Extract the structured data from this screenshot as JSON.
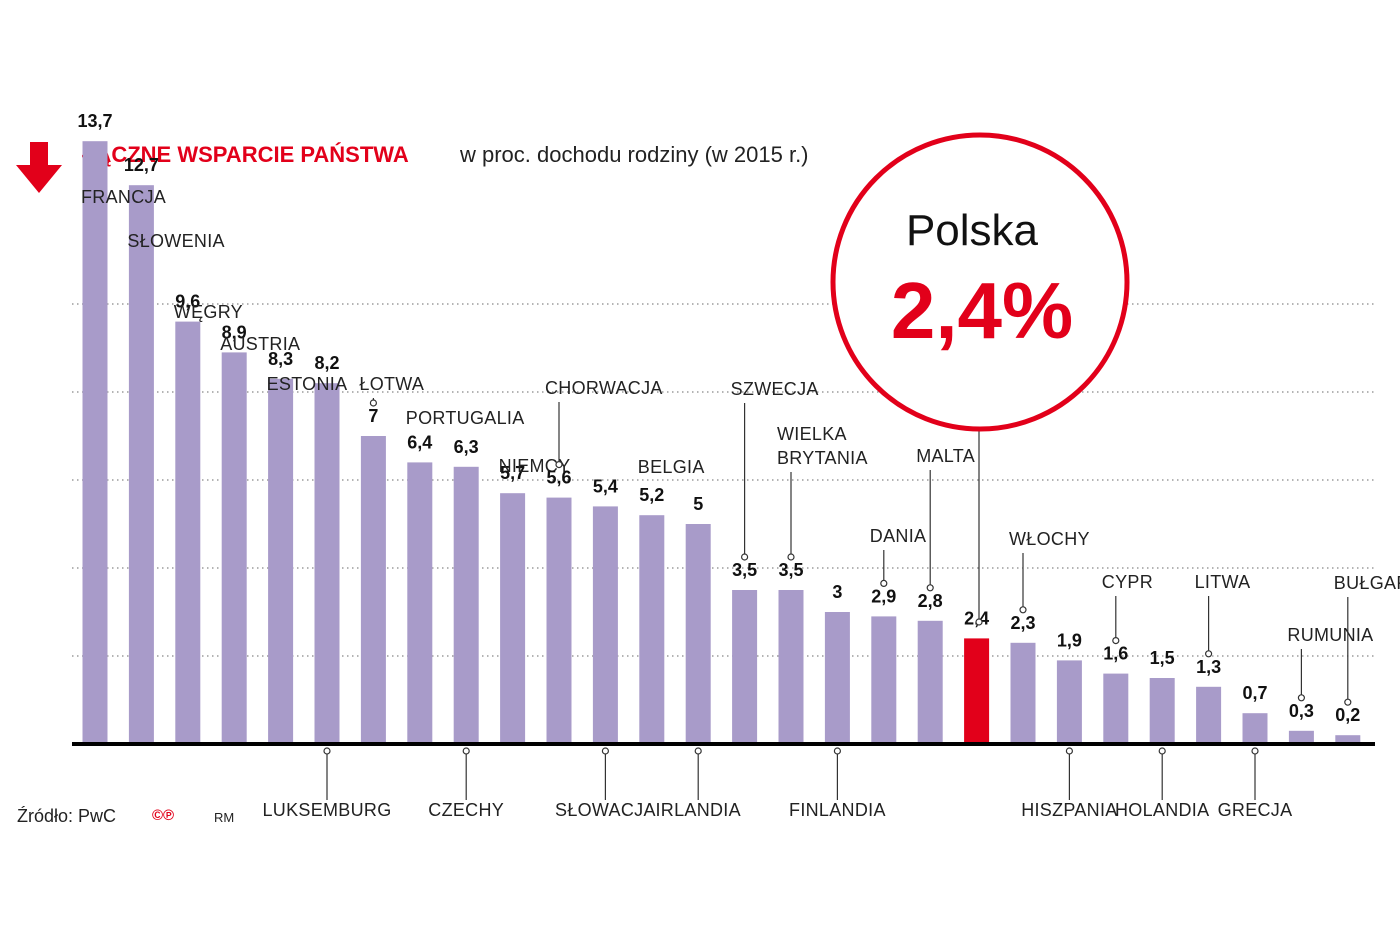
{
  "header": {
    "title": "ŁĄCZNE WSPARCIE PAŃSTWA",
    "subtitle": "w proc. dochodu rodziny (w 2015 r.)"
  },
  "highlight": {
    "country": "Polska",
    "value_label": "2,4%"
  },
  "footer": {
    "source": "Źródło: PwC",
    "copyright": "©℗",
    "author": "RM"
  },
  "colors": {
    "bar": "#a89bc9",
    "highlight": "#e2001a",
    "accent": "#e2001a",
    "grid": "#888888"
  },
  "chart_data": {
    "type": "bar",
    "title": "ŁĄCZNE WSPARCIE PAŃSTWA",
    "subtitle": "w proc. dochodu rodziny (w 2015 r.)",
    "xlabel": "",
    "ylabel": "",
    "ylim": [
      0,
      15
    ],
    "grid": true,
    "highlight_category": "POLSKA",
    "categories": [
      "FRANCJA",
      "SŁOWENIA",
      "WĘGRY",
      "AUSTRIA",
      "ESTONIA",
      "LUKSEMBURG",
      "ŁOTWA",
      "PORTUGALIA",
      "CZECHY",
      "NIEMCY",
      "CHORWACJA",
      "SŁOWACJA",
      "BELGIA",
      "IRLANDIA",
      "SZWECJA",
      "WIELKA BRYTANIA",
      "FINLANDIA",
      "DANIA",
      "MALTA",
      "POLSKA",
      "WŁOCHY",
      "HISZPANIA",
      "CYPR",
      "HOLANDIA",
      "LITWA",
      "GRECJA",
      "RUMUNIA",
      "BUŁGARIA"
    ],
    "values": [
      13.7,
      12.7,
      9.6,
      8.9,
      8.3,
      8.2,
      7,
      6.4,
      6.3,
      5.7,
      5.6,
      5.4,
      5.2,
      5,
      3.5,
      3.5,
      3,
      2.9,
      2.8,
      2.4,
      2.3,
      1.9,
      1.6,
      1.5,
      1.3,
      0.7,
      0.3,
      0.2
    ],
    "value_labels": [
      "13,7",
      "12,7",
      "9,6",
      "8,9",
      "8,3",
      "8,2",
      "7",
      "6,4",
      "6,3",
      "5,7",
      "5,6",
      "5,4",
      "5,2",
      "5",
      "3,5",
      "3,5",
      "3",
      "2,9",
      "2,8",
      "2,4",
      "2,3",
      "1,9",
      "1,6",
      "1,5",
      "1,3",
      "0,7",
      "0,3",
      "0,2"
    ],
    "category_labels": [
      "FRANCJA",
      "SŁOWENIA",
      "WĘGRY",
      "AUSTRIA",
      "ESTONIA",
      "LUKSEMBURG",
      "ŁOTWA",
      "PORTUGALIA",
      "CZECHY",
      "NIEMCY",
      "CHORWACJA",
      "SŁOWACJA",
      "BELGIA",
      "IRLANDIA",
      "SZWECJA",
      [
        "WIELKA",
        "BRYTANIA"
      ],
      "FINLANDIA",
      "DANIA",
      "MALTA",
      "",
      "WŁOCHY",
      "HISZPANIA",
      "CYPR",
      "HOLANDIA",
      "LITWA",
      "GRECJA",
      "RUMUNIA",
      "BUŁGARIA"
    ],
    "label_position": [
      "above",
      "above",
      "above",
      "above",
      "above",
      "below",
      "above",
      "above",
      "below",
      "above",
      "above",
      "below",
      "above",
      "below",
      "above",
      "above",
      "below",
      "above",
      "above",
      "none",
      "above",
      "below",
      "above",
      "below",
      "above",
      "below",
      "above",
      "above"
    ]
  }
}
